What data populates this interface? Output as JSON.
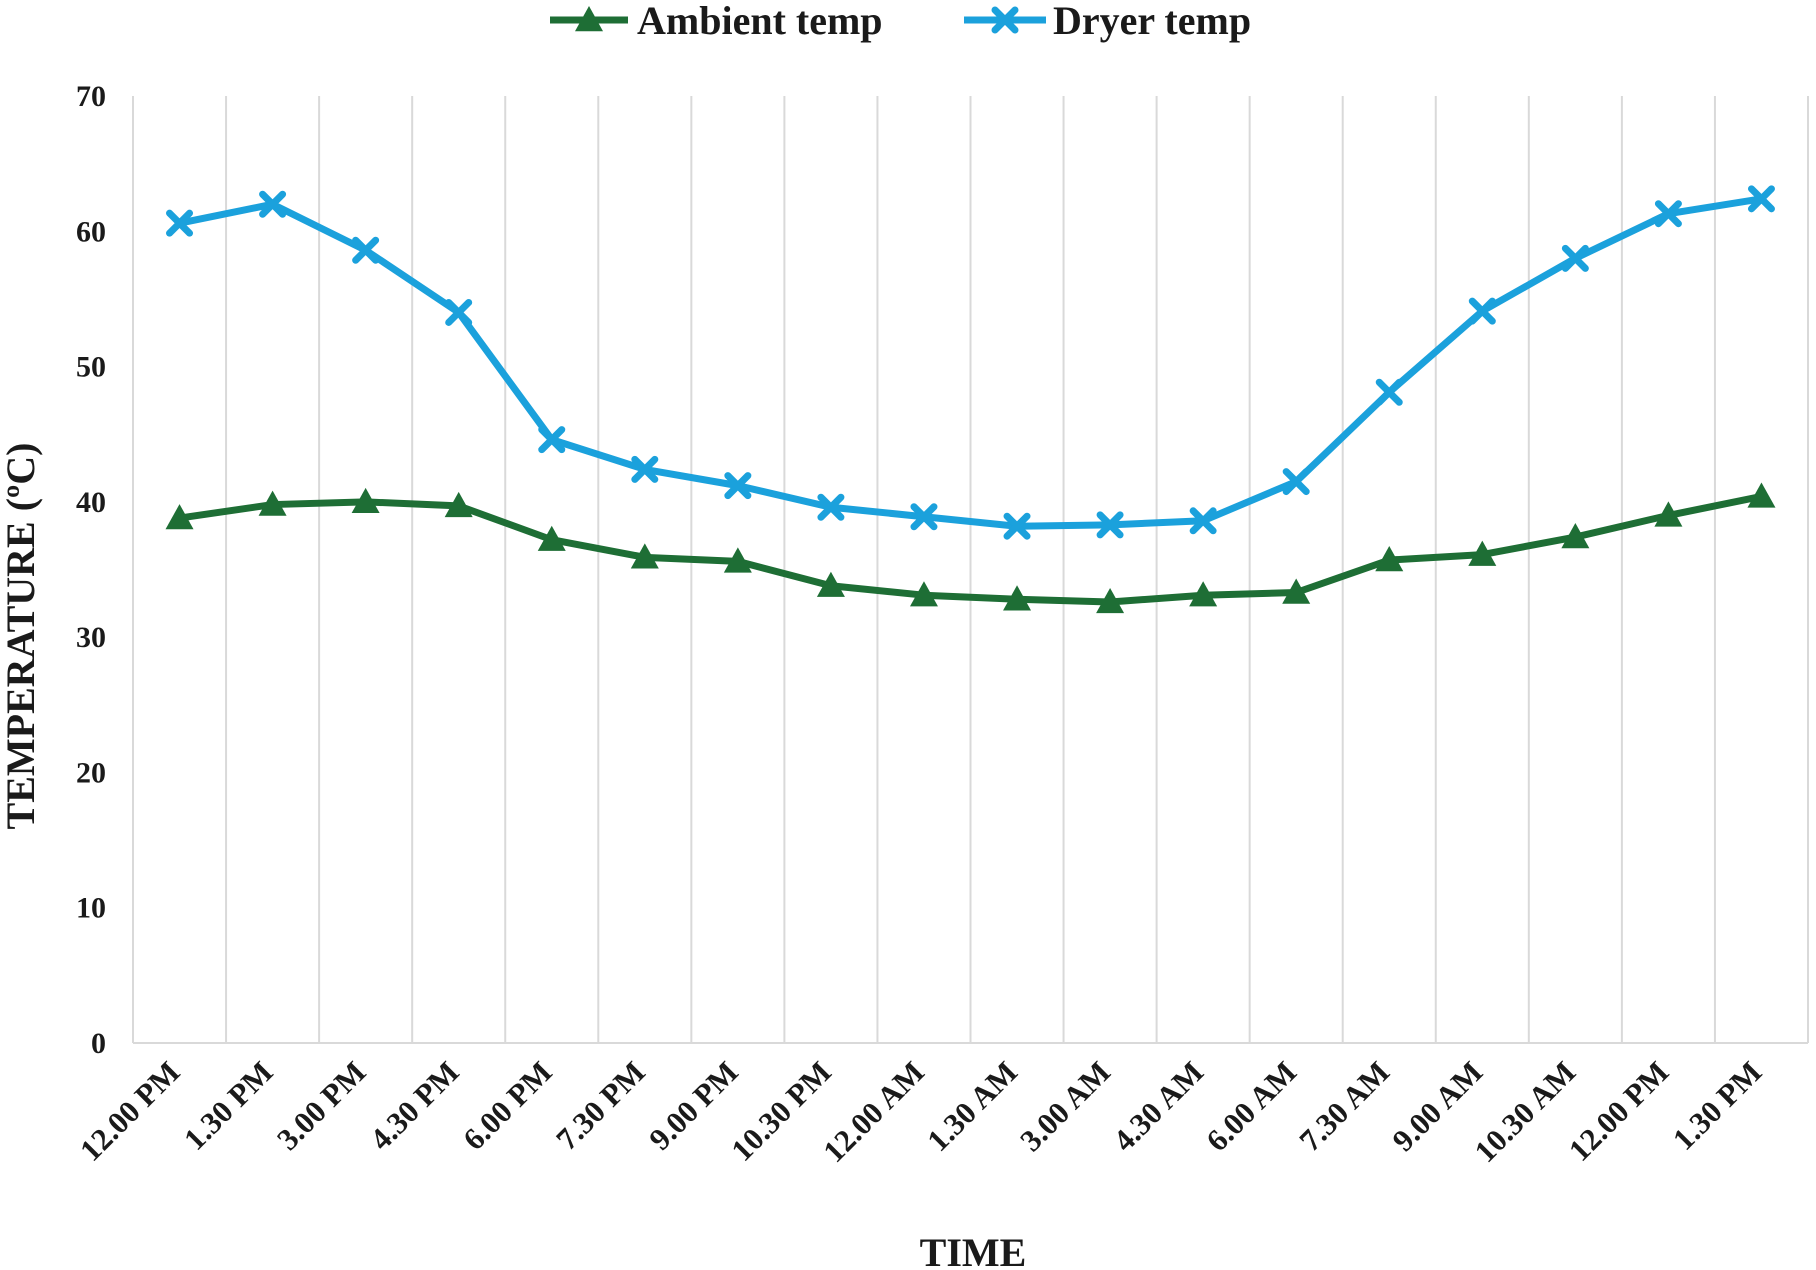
{
  "chart_data": {
    "type": "line",
    "title": "",
    "xlabel": "TIME",
    "ylabel": "TEMPERATURE (ºC)",
    "ylim": [
      0,
      70
    ],
    "yticks": [
      0,
      10,
      20,
      30,
      40,
      50,
      60,
      70
    ],
    "grid": "vertical",
    "legend_position": "top-center",
    "categories": [
      "12.00 PM",
      "1.30 PM",
      "3.00 PM",
      "4.30 PM",
      "6.00 PM",
      "7.30 PM",
      "9.00 PM",
      "10.30 PM",
      "12.00 AM",
      "1.30 AM",
      "3.00 AM",
      "4.30 AM",
      "6.00 AM",
      "7.30 AM",
      "9.00 AM",
      "10.30 AM",
      "12.00 PM",
      "1.30 PM"
    ],
    "series": [
      {
        "name": "Ambient temp",
        "color": "#1e6e35",
        "marker": "triangle",
        "values": [
          38.8,
          39.8,
          40.0,
          39.7,
          37.2,
          35.9,
          35.6,
          33.8,
          33.1,
          32.8,
          32.6,
          33.1,
          33.3,
          35.7,
          36.1,
          37.4,
          39.0,
          40.4
        ]
      },
      {
        "name": "Dryer temp",
        "color": "#1ba1dc",
        "marker": "x",
        "values": [
          60.6,
          62.0,
          58.6,
          54.0,
          44.6,
          42.4,
          41.2,
          39.6,
          38.9,
          38.2,
          38.3,
          38.6,
          41.5,
          48.1,
          54.1,
          58.0,
          61.3,
          62.4
        ]
      }
    ]
  }
}
